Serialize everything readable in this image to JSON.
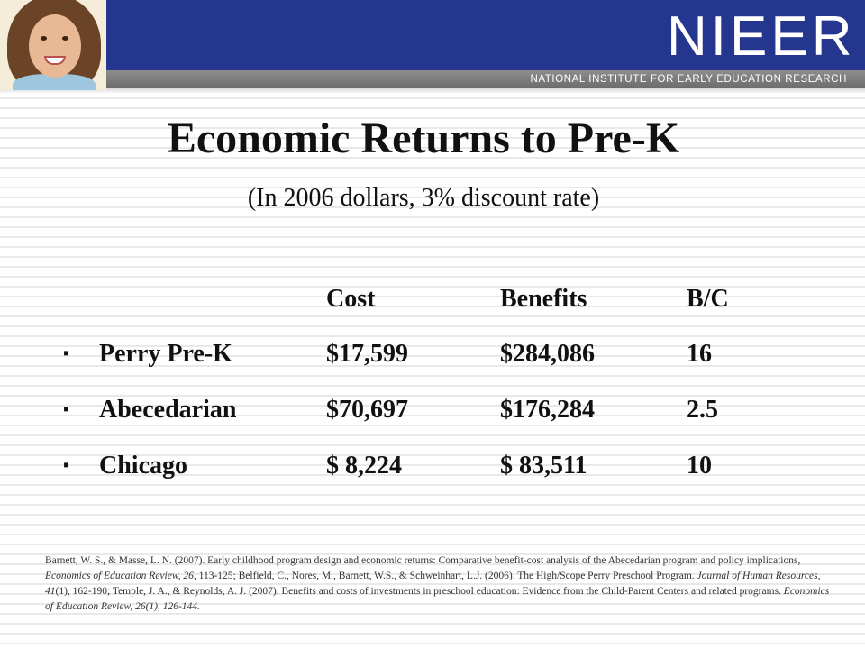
{
  "header": {
    "logo_text": "NIEER",
    "logo_tagline": "NATIONAL INSTITUTE FOR EARLY EDUCATION RESEARCH",
    "brand_color": "#25368f",
    "band_color": "#7a7a7a"
  },
  "slide": {
    "title": "Economic Returns to Pre-K",
    "subtitle": "(In 2006 dollars, 3% discount rate)"
  },
  "table": {
    "headers": [
      "",
      "Cost",
      "Benefits",
      "B/C"
    ],
    "bullet": "▪",
    "rows": [
      {
        "program": "Perry Pre-K",
        "cost": "$17,599",
        "benefits": "$284,086",
        "bc": "16"
      },
      {
        "program": "Abecedarian",
        "cost": "$70,697",
        "benefits": "$176,284",
        "bc": "2.5"
      },
      {
        "program": "Chicago",
        "cost": "$ 8,224",
        "benefits": "$ 83,511",
        "bc": "10"
      }
    ]
  },
  "citation": {
    "p1": "Barnett, W. S., & Masse, L. N. (2007).  Early childhood program design and economic returns: Comparative benefit-cost analysis of the Abecedarian program and policy implications, ",
    "j1": "Economics of Education Review, 26,",
    "p2": " 113-125; Belfield, C., Nores, M., Barnett, W.S., & Schweinhart, L.J. (2006).  The High/Scope Perry Preschool Program.  ",
    "j2": "Journal of Human Resources, 41",
    "p3": "(1), 162-190; Temple, J. A., & Reynolds, A. J.  (2007). Benefits and costs of investments in preschool education:  Evidence from the Child-Parent Centers and related programs. ",
    "j3": "Economics of Education Review, 26(1), 126-144."
  }
}
